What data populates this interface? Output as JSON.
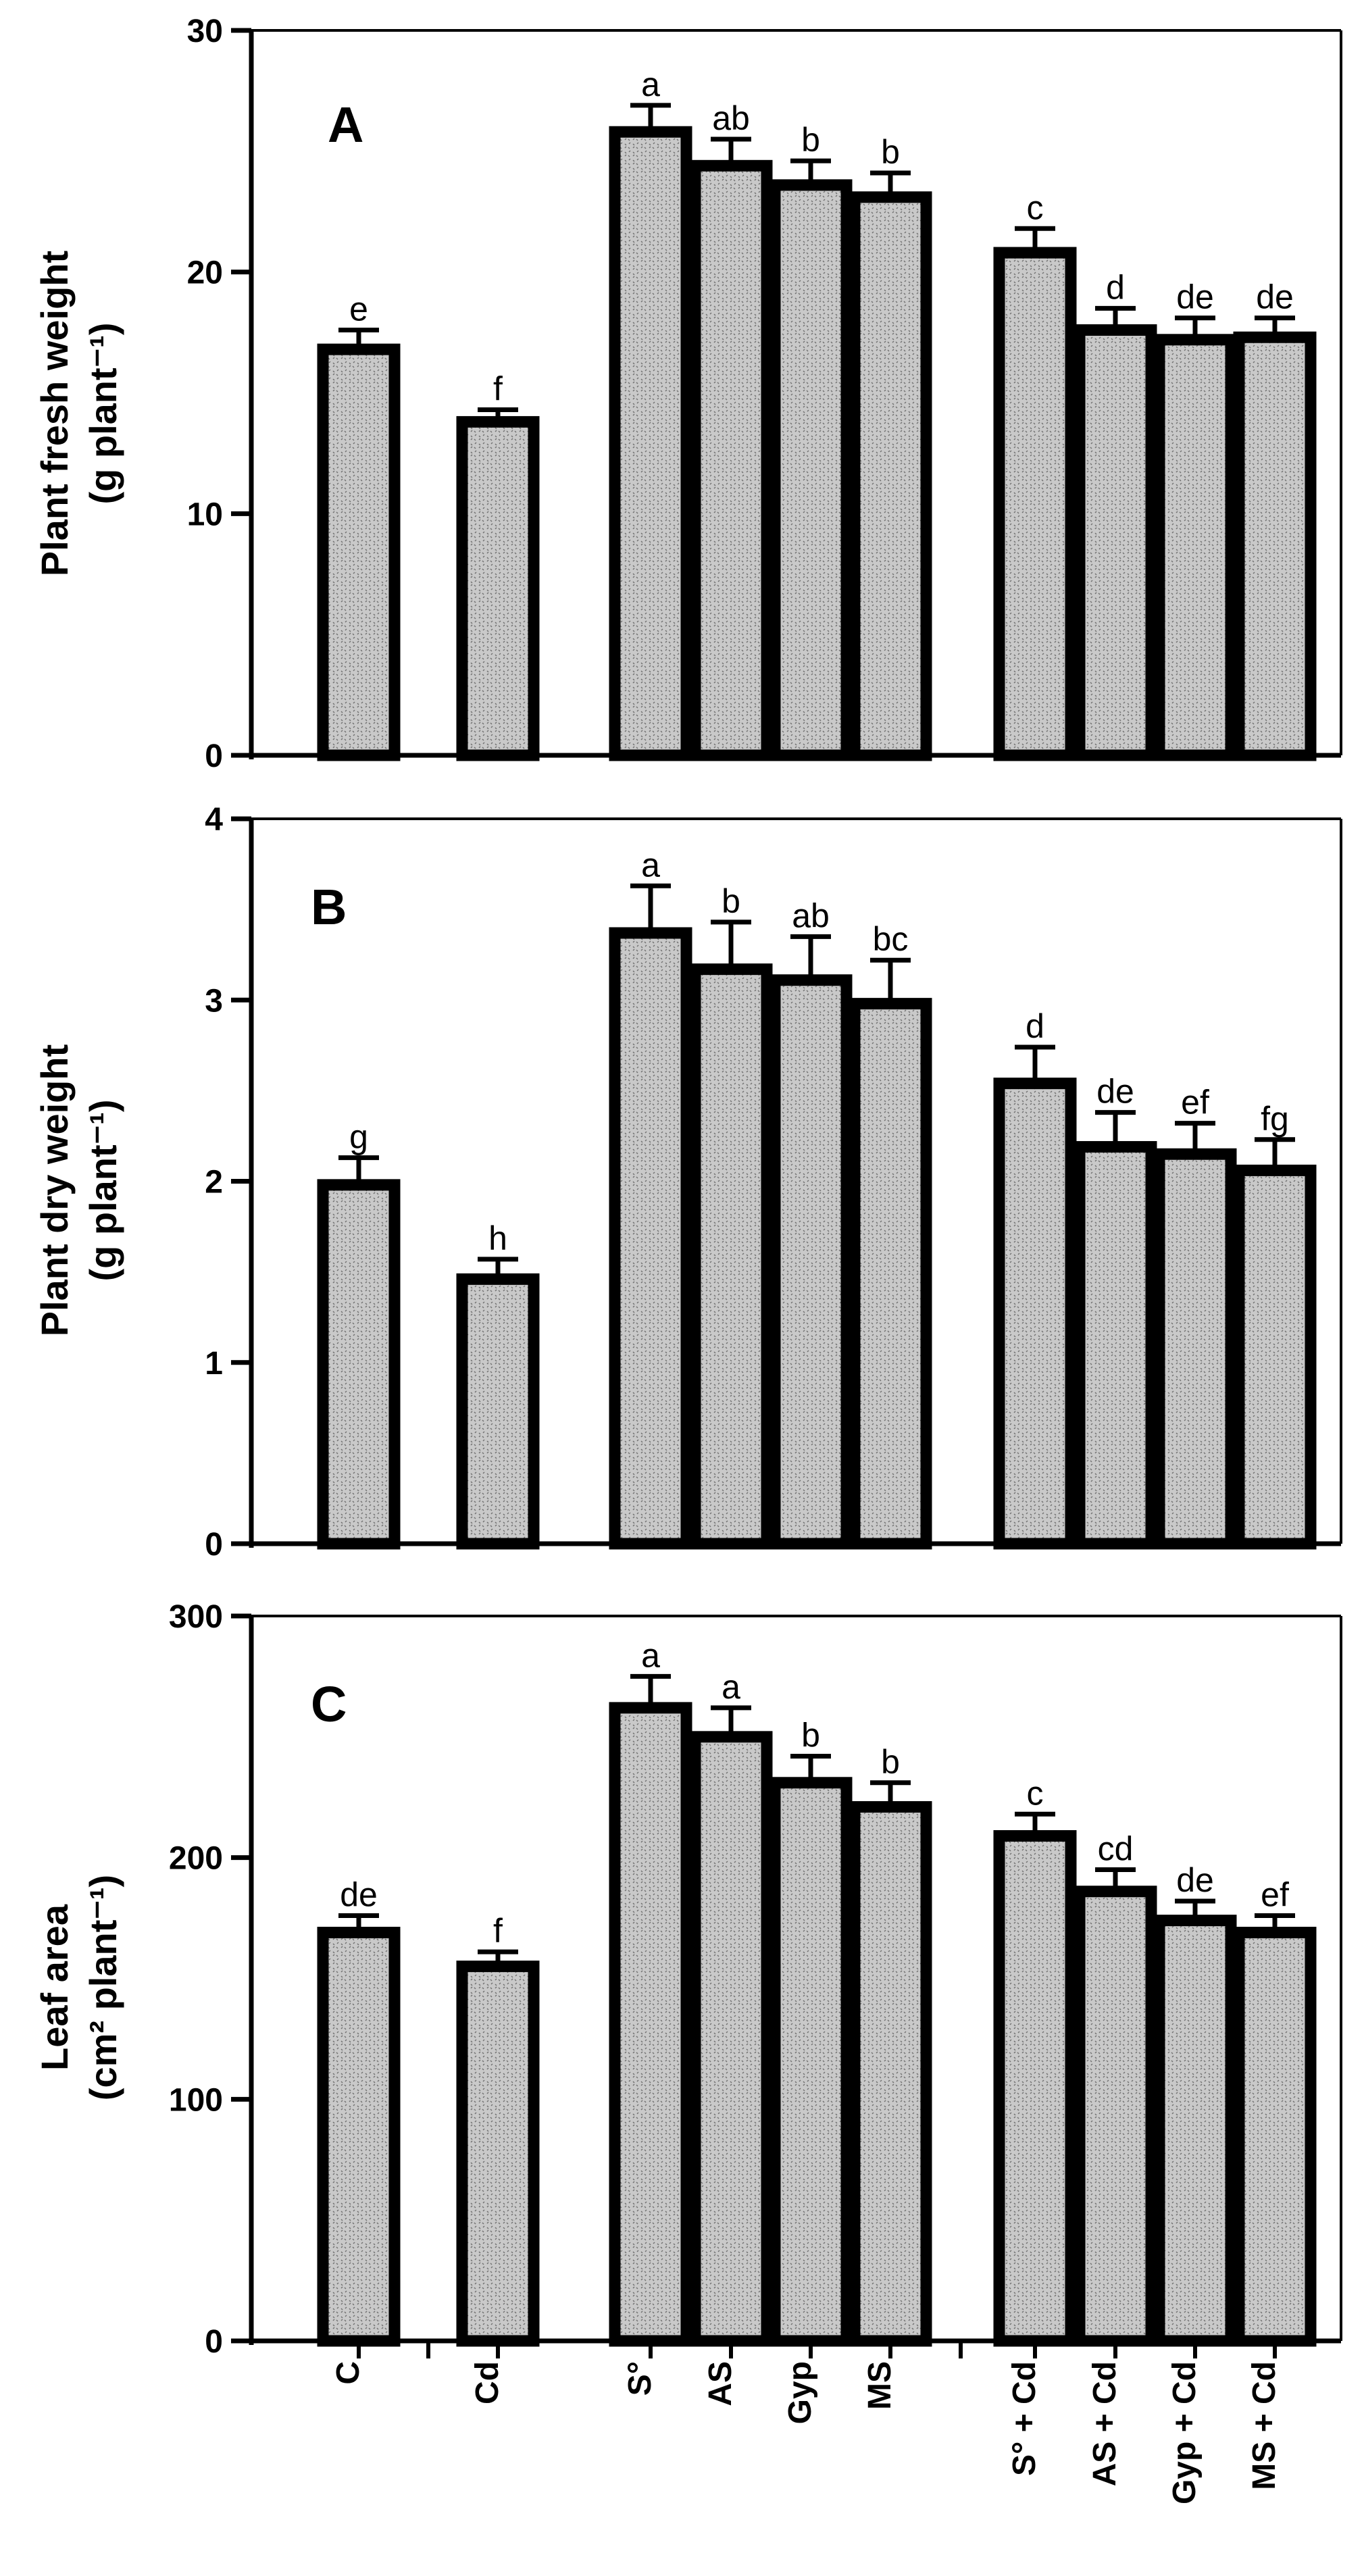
{
  "figure": {
    "categories": [
      "C",
      "Cd",
      "S°",
      "AS",
      "Gyp",
      "MS",
      "S° + Cd",
      "AS + Cd",
      "Gyp + Cd",
      "MS + Cd"
    ],
    "bar_fill": "#c8c8c8",
    "outline": "#000000"
  },
  "chart_data": [
    {
      "type": "bar",
      "panel": "A",
      "ylabel_line1": "Plant fresh weight",
      "ylabel_line2": "(g plant⁻¹)",
      "ylim": [
        0,
        30
      ],
      "yticks": [
        "0",
        "10",
        "20",
        "30"
      ],
      "categories": [
        "C",
        "Cd",
        "S°",
        "AS",
        "Gyp",
        "MS",
        "S° + Cd",
        "AS + Cd",
        "Gyp + Cd",
        "MS + Cd"
      ],
      "values": [
        16.8,
        13.8,
        25.8,
        24.4,
        23.6,
        23.1,
        20.8,
        17.6,
        17.2,
        17.3
      ],
      "errors": [
        0.8,
        0.5,
        1.1,
        1.1,
        1.0,
        1.0,
        1.0,
        0.9,
        0.9,
        0.8
      ],
      "letters": [
        "e",
        "f",
        "a",
        "ab",
        "b",
        "b",
        "c",
        "d",
        "de",
        "de"
      ]
    },
    {
      "type": "bar",
      "panel": "B",
      "ylabel_line1": "Plant dry weight",
      "ylabel_line2": "(g plant⁻¹)",
      "ylim": [
        0,
        4
      ],
      "yticks": [
        "0",
        "1",
        "2",
        "3",
        "4"
      ],
      "categories": [
        "C",
        "Cd",
        "S°",
        "AS",
        "Gyp",
        "MS",
        "S° + Cd",
        "AS + Cd",
        "Gyp + Cd",
        "MS + Cd"
      ],
      "values": [
        1.98,
        1.46,
        3.37,
        3.17,
        3.11,
        2.98,
        2.54,
        2.19,
        2.15,
        2.06
      ],
      "errors": [
        0.15,
        0.11,
        0.26,
        0.26,
        0.24,
        0.24,
        0.2,
        0.19,
        0.17,
        0.17
      ],
      "letters": [
        "g",
        "h",
        "a",
        "b",
        "ab",
        "bc",
        "d",
        "de",
        "ef",
        "fg"
      ]
    },
    {
      "type": "bar",
      "panel": "C",
      "ylabel_line1": "Leaf area",
      "ylabel_line2": "(cm² plant⁻¹)",
      "ylim": [
        0,
        300
      ],
      "yticks": [
        "0",
        "100",
        "200",
        "300"
      ],
      "categories": [
        "C",
        "Cd",
        "S°",
        "AS",
        "Gyp",
        "MS",
        "S° + Cd",
        "AS + Cd",
        "Gyp + Cd",
        "MS + Cd"
      ],
      "values": [
        169,
        155,
        262,
        250,
        231,
        221,
        209,
        186,
        174,
        169
      ],
      "errors": [
        7,
        6,
        13,
        12,
        11,
        10,
        9,
        9,
        8,
        7
      ],
      "letters": [
        "de",
        "f",
        "a",
        "a",
        "b",
        "b",
        "c",
        "cd",
        "de",
        "ef"
      ]
    }
  ]
}
